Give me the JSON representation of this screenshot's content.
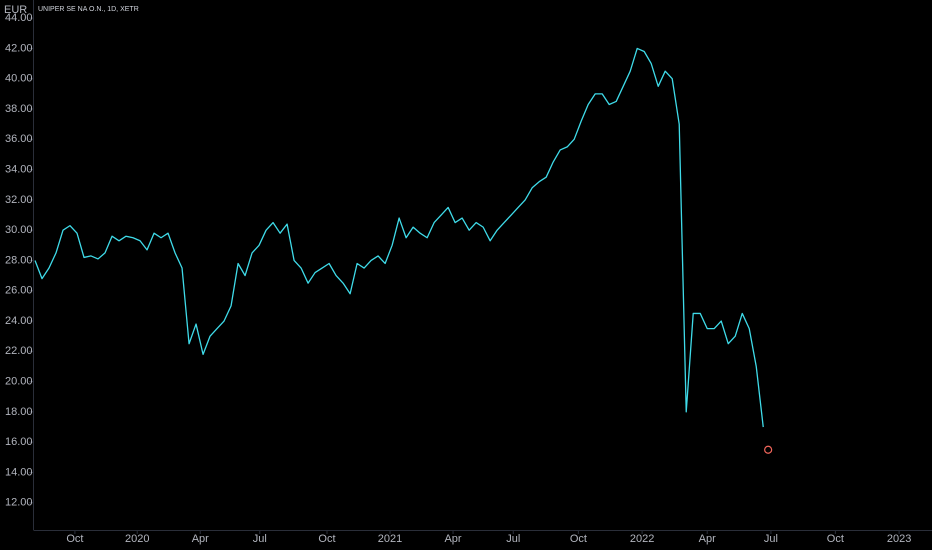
{
  "chart_data": {
    "type": "line",
    "title": "UNIPER SE NA O.N., 1D, XETR",
    "ylabel": "EUR",
    "color": "#3fdbe9",
    "values": [
      28,
      26.8,
      27.5,
      28.5,
      30,
      30.3,
      29.8,
      28.2,
      28.3,
      28.1,
      28.5,
      29.6,
      29.3,
      29.6,
      29.5,
      29.3,
      28.7,
      29.8,
      29.5,
      29.8,
      28.5,
      27.5,
      22.5,
      23.8,
      21.8,
      23,
      23.5,
      24,
      25,
      27.8,
      27,
      28.5,
      29,
      30,
      30.5,
      29.8,
      30.4,
      28,
      27.5,
      26.5,
      27.2,
      27.5,
      27.8,
      27,
      26.5,
      25.8,
      27.8,
      27.5,
      28,
      28.3,
      27.8,
      29,
      30.8,
      29.5,
      30.2,
      29.8,
      29.5,
      30.5,
      31,
      31.5,
      30.5,
      30.8,
      30,
      30.5,
      30.2,
      29.3,
      30,
      30.5,
      31,
      31.5,
      32,
      32.8,
      33.2,
      33.5,
      34.5,
      35.3,
      35.5,
      36,
      37.2,
      38.3,
      39,
      39,
      38.3,
      38.5,
      39.5,
      40.5,
      42,
      41.8,
      41,
      39.5,
      40.5,
      40,
      37,
      18,
      24.5,
      24.5,
      23.5,
      23.5,
      24,
      22.5,
      23,
      24.5,
      23.5,
      21,
      17
    ],
    "marker": {
      "x": 104.7,
      "value": 15.5,
      "color": "#f2665b"
    },
    "xlim": [
      0,
      128.1
    ],
    "xticks": [
      {
        "value": 5.7,
        "label": "Oct"
      },
      {
        "value": 14.6,
        "label": "2020"
      },
      {
        "value": 23.6,
        "label": "Apr"
      },
      {
        "value": 32.1,
        "label": "Jul"
      },
      {
        "value": 41.7,
        "label": "Oct"
      },
      {
        "value": 50.7,
        "label": "2021"
      },
      {
        "value": 59.7,
        "label": "Apr"
      },
      {
        "value": 68.3,
        "label": "Jul"
      },
      {
        "value": 77.6,
        "label": "Oct"
      },
      {
        "value": 86.7,
        "label": "2022"
      },
      {
        "value": 96,
        "label": "Apr"
      },
      {
        "value": 105.1,
        "label": "Jul"
      },
      {
        "value": 114.3,
        "label": "Oct"
      },
      {
        "value": 123.4,
        "label": "2023"
      }
    ],
    "ylim": [
      10.2,
      45.2
    ],
    "yticks": [
      {
        "value": 12,
        "label": "12.00"
      },
      {
        "value": 14,
        "label": "14.00"
      },
      {
        "value": 16,
        "label": "16.00"
      },
      {
        "value": 18,
        "label": "18.00"
      },
      {
        "value": 20,
        "label": "20.00"
      },
      {
        "value": 22,
        "label": "22.00"
      },
      {
        "value": 24,
        "label": "24.00"
      },
      {
        "value": 26,
        "label": "26.00"
      },
      {
        "value": 28,
        "label": "28.00"
      },
      {
        "value": 30,
        "label": "30.00"
      },
      {
        "value": 32,
        "label": "32.00"
      },
      {
        "value": 34,
        "label": "34.00"
      },
      {
        "value": 36,
        "label": "36.00"
      },
      {
        "value": 38,
        "label": "38.00"
      },
      {
        "value": 40,
        "label": "40.00"
      },
      {
        "value": 42,
        "label": "42.00"
      },
      {
        "value": 44,
        "label": "44.00"
      }
    ],
    "grid": false
  }
}
